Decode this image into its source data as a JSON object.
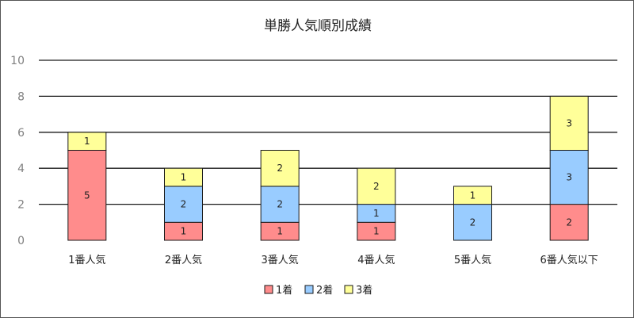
{
  "chart_data": {
    "type": "bar",
    "stacked": true,
    "title": "単勝人気順別成績",
    "xlabel": "",
    "ylabel": "",
    "categories": [
      "1番人気",
      "2番人気",
      "3番人気",
      "4番人気",
      "5番人気",
      "6番人気以下"
    ],
    "series": [
      {
        "name": "1着",
        "values": [
          5,
          1,
          1,
          1,
          0,
          2
        ],
        "color": "#FF8C8C"
      },
      {
        "name": "2着",
        "values": [
          0,
          2,
          2,
          1,
          2,
          3
        ],
        "color": "#99CCFF"
      },
      {
        "name": "3着",
        "values": [
          1,
          1,
          2,
          2,
          1,
          3
        ],
        "color": "#FFFF99"
      }
    ],
    "ylim": [
      0,
      10
    ],
    "yticks": [
      "0",
      "2",
      "4",
      "6",
      "8",
      "10"
    ],
    "grid": true,
    "legend_position": "bottom"
  }
}
